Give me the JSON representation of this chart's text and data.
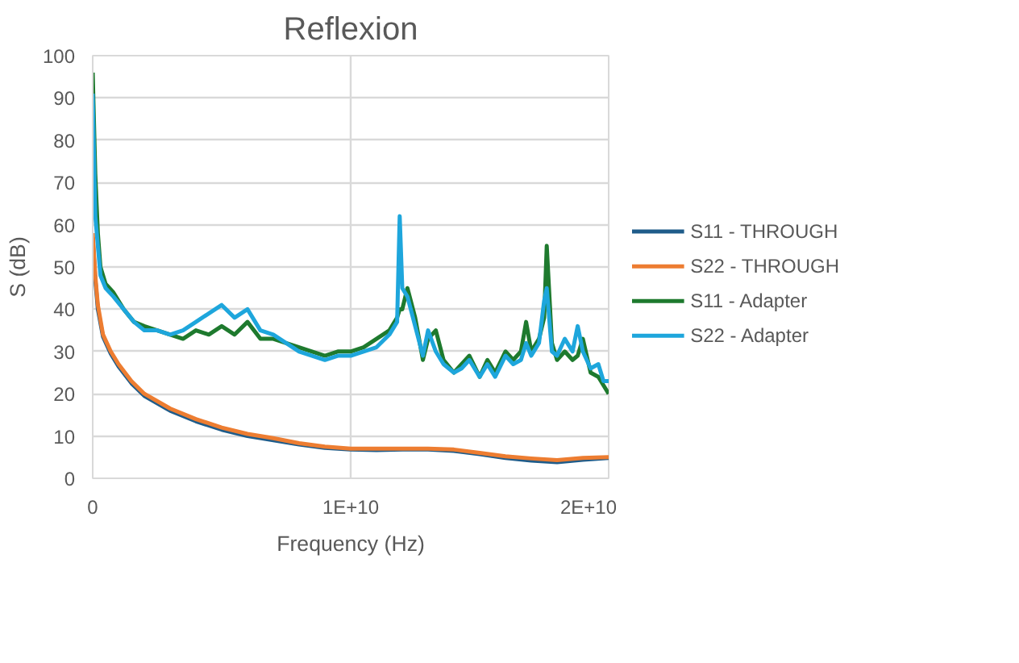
{
  "chart_data": {
    "type": "line",
    "title": "Reflexion",
    "xlabel": "Frequency (Hz)",
    "ylabel": "S (dB)",
    "xlim": [
      0,
      20000000000
    ],
    "xticks": [
      0,
      {
        "value": 10000000000,
        "label": "1E+10"
      },
      {
        "value": 20000000000,
        "label": "2E+10"
      }
    ],
    "ylim": [
      0,
      100
    ],
    "yticks": [
      0,
      10,
      20,
      30,
      40,
      50,
      60,
      70,
      80,
      90,
      100
    ],
    "grid": true,
    "legend": "right",
    "marker": "none",
    "line_style": "solid",
    "series": [
      {
        "name": "S11 - THROUGH",
        "color": "#1f5c8a",
        "x": [
          0,
          100000000,
          200000000,
          400000000,
          700000000,
          1000000000,
          1500000000,
          2000000000,
          3000000000,
          4000000000,
          5000000000,
          6000000000,
          7000000000,
          8000000000,
          9000000000,
          10000000000,
          11000000000,
          12000000000,
          13000000000,
          14000000000,
          15000000000,
          16000000000,
          17000000000,
          18000000000,
          19000000000,
          20000000000
        ],
        "values": [
          57,
          47,
          40,
          33.5,
          29.5,
          26.5,
          22.5,
          19.5,
          16,
          13.5,
          11.5,
          10,
          9,
          8,
          7.2,
          6.8,
          6.7,
          6.8,
          6.8,
          6.5,
          5.7,
          4.8,
          4.2,
          3.8,
          4.4,
          4.8
        ]
      },
      {
        "name": "S22 - THROUGH",
        "color": "#ed7d31",
        "x": [
          0,
          100000000,
          200000000,
          400000000,
          700000000,
          1000000000,
          1500000000,
          2000000000,
          3000000000,
          4000000000,
          5000000000,
          6000000000,
          7000000000,
          8000000000,
          9000000000,
          10000000000,
          11000000000,
          12000000000,
          13000000000,
          14000000000,
          15000000000,
          16000000000,
          17000000000,
          18000000000,
          19000000000,
          20000000000
        ],
        "values": [
          58,
          48,
          41,
          34,
          30,
          27,
          23,
          20,
          16.5,
          14,
          12,
          10.5,
          9.5,
          8.3,
          7.5,
          7,
          7,
          7,
          7,
          6.8,
          6,
          5.2,
          4.7,
          4.3,
          4.8,
          5
        ]
      },
      {
        "name": "S11 - Adapter",
        "color": "#1e7a2e",
        "x": [
          0,
          100000000,
          200000000,
          300000000,
          500000000,
          800000000,
          1200000000,
          1600000000,
          2000000000,
          2500000000,
          3000000000,
          3500000000,
          4000000000,
          4500000000,
          5000000000,
          5500000000,
          6000000000,
          6500000000,
          7000000000,
          7500000000,
          8000000000,
          8500000000,
          9000000000,
          9500000000,
          10000000000,
          10500000000,
          11000000000,
          11500000000,
          11800000000,
          11900000000,
          12000000000,
          12200000000,
          12500000000,
          12800000000,
          13000000000,
          13300000000,
          13600000000,
          14000000000,
          14300000000,
          14600000000,
          15000000000,
          15300000000,
          15600000000,
          16000000000,
          16300000000,
          16600000000,
          16800000000,
          17000000000,
          17300000000,
          17500000000,
          17600000000,
          17800000000,
          18000000000,
          18300000000,
          18600000000,
          18800000000,
          19000000000,
          19300000000,
          19600000000,
          19800000000,
          20000000000
        ],
        "values": [
          96,
          72,
          58,
          50,
          46,
          44,
          40,
          37,
          36,
          35,
          34,
          33,
          35,
          34,
          36,
          34,
          37,
          33,
          33,
          32,
          31,
          30,
          29,
          30,
          30,
          31,
          33,
          35,
          38,
          40,
          40,
          45,
          38,
          28,
          33,
          35,
          28,
          25,
          27,
          29,
          24,
          28,
          25,
          30,
          28,
          30,
          37,
          30,
          33,
          38,
          55,
          32,
          28,
          30,
          28,
          29,
          33,
          25,
          24,
          22,
          20
        ]
      },
      {
        "name": "S22 - Adapter",
        "color": "#1ea6dc",
        "x": [
          0,
          100000000,
          200000000,
          300000000,
          500000000,
          800000000,
          1200000000,
          1600000000,
          2000000000,
          2500000000,
          3000000000,
          3500000000,
          4000000000,
          4500000000,
          5000000000,
          5500000000,
          6000000000,
          6500000000,
          7000000000,
          7500000000,
          8000000000,
          8500000000,
          9000000000,
          9500000000,
          10000000000,
          10500000000,
          11000000000,
          11500000000,
          11800000000,
          11900000000,
          12000000000,
          12200000000,
          12500000000,
          12800000000,
          13000000000,
          13300000000,
          13600000000,
          14000000000,
          14300000000,
          14600000000,
          15000000000,
          15300000000,
          15600000000,
          16000000000,
          16300000000,
          16600000000,
          16800000000,
          17000000000,
          17300000000,
          17500000000,
          17600000000,
          17800000000,
          18000000000,
          18300000000,
          18600000000,
          18800000000,
          19000000000,
          19300000000,
          19600000000,
          19800000000,
          20000000000
        ],
        "values": [
          91,
          62,
          55,
          48,
          45,
          43,
          40,
          37,
          35,
          35,
          34,
          35,
          37,
          39,
          41,
          38,
          40,
          35,
          34,
          32,
          30,
          29,
          28,
          29,
          29,
          30,
          31,
          34,
          37,
          62,
          45,
          43,
          36,
          29,
          35,
          30,
          27,
          25,
          26,
          28,
          24,
          27,
          24,
          29,
          27,
          28,
          32,
          29,
          32,
          42,
          45,
          30,
          29,
          33,
          30,
          36,
          30,
          26,
          27,
          23,
          23
        ]
      }
    ]
  }
}
